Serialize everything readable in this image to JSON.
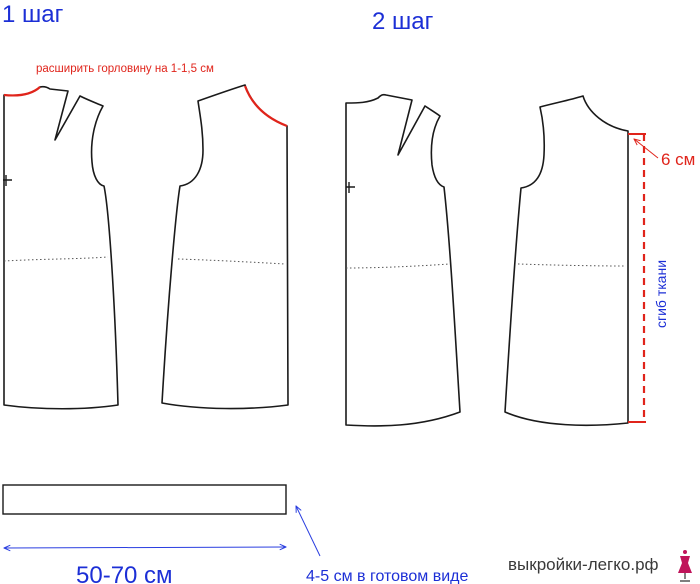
{
  "step1_label": "1 шаг",
  "step2_label": "2 шаг",
  "neckline_note": "расширить горловину на 1-1,5 см",
  "six_cm_label": "6 см",
  "fold_label": "сгиб ткани",
  "strip_length_label": "50-70 см",
  "strip_width_label": "4-5 см в готовом виде",
  "watermark": "выкройки-легко.рф",
  "colors": {
    "label_blue": "#1c2fd6",
    "note_red": "#e0241b",
    "outline": "#1a1a1a"
  }
}
